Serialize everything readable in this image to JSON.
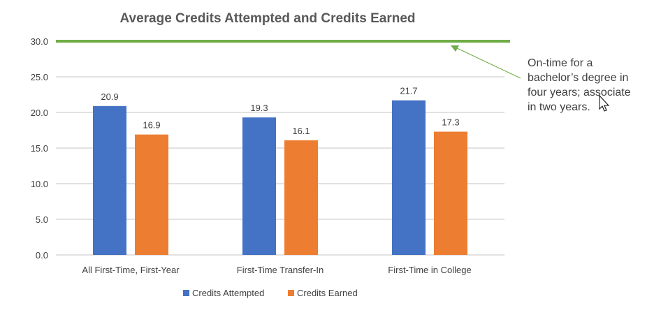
{
  "chart_data": {
    "type": "bar",
    "title": "Average Credits Attempted and Credits Earned",
    "xlabel": "",
    "ylabel": "",
    "ylim": [
      0,
      30
    ],
    "yticks": [
      "0.0",
      "5.0",
      "10.0",
      "15.0",
      "20.0",
      "25.0",
      "30.0"
    ],
    "categories": [
      "All First-Time, First-Year",
      "First-Time Transfer-In",
      "First-Time in College"
    ],
    "series": [
      {
        "name": "Credits Attempted",
        "values": [
          20.9,
          19.3,
          21.7
        ],
        "labels": [
          "20.9",
          "19.3",
          "21.7"
        ],
        "color": "#4472C4"
      },
      {
        "name": "Credits Earned",
        "values": [
          16.9,
          16.1,
          17.3
        ],
        "labels": [
          "16.9",
          "16.1",
          "17.3"
        ],
        "color": "#ED7D31"
      }
    ],
    "reference_line": {
      "value": 30,
      "color": "#70AD47"
    },
    "annotation": {
      "lines": [
        "On-time for a",
        "bachelor’s degree in",
        "four years; associate",
        "in two years."
      ],
      "arrow_color": "#70AD47"
    },
    "grid": true,
    "gridline_color": "#D9D9D9",
    "legend_position": "bottom"
  }
}
